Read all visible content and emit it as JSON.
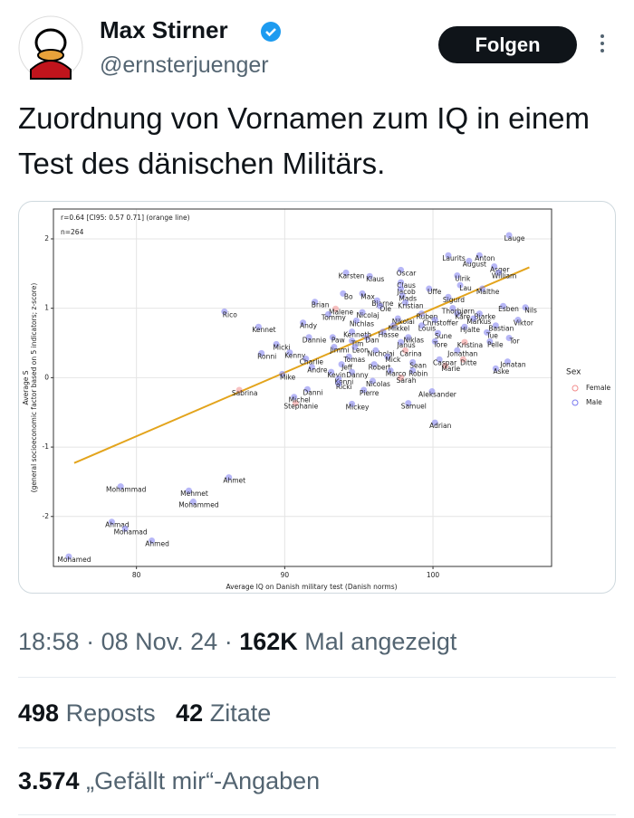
{
  "header": {
    "name": "Max Stirner",
    "handle": "@ernsterjuenger",
    "follow_button": "Folgen"
  },
  "tweet": {
    "text": "Zuordnung von Vornamen zum IQ in einem Test des dänischen Militärs."
  },
  "chart_data": {
    "type": "scatter",
    "annotations": [
      "r=0.64 [CI95: 0.57 0.71] (orange line)",
      "n=264"
    ],
    "x_label": "Average IQ on Danish military test (Danish norms)",
    "y_label": [
      "Average S",
      "(general socioeconomic factor based on 5 indicators; z-score)"
    ],
    "legend_title": "Sex",
    "grid": true,
    "xlim": [
      74.4,
      108.0
    ],
    "ylim": [
      -2.72,
      2.43
    ],
    "xticks": [
      80,
      90,
      100
    ],
    "yticks": [
      -2,
      -1,
      0,
      1,
      2
    ],
    "trend_line": {
      "color": "#e3a41c",
      "x": [
        75.8,
        106.5
      ],
      "values": [
        -1.23,
        1.59
      ]
    },
    "series": [
      {
        "name": "Female",
        "color": "#f28e8e",
        "labels": [
          "Malene",
          "Kristina",
          "Carina",
          "Ditte",
          "Marie",
          "Sarah",
          "Sabrina",
          "Stephanie"
        ],
        "x": [
          93.8,
          102.5,
          98.5,
          102.4,
          101.2,
          98.2,
          87.3,
          91.1
        ],
        "values": [
          0.94,
          0.46,
          0.34,
          0.21,
          0.12,
          -0.05,
          -0.23,
          -0.42
        ]
      },
      {
        "name": "Male",
        "color": "#7b7bf0",
        "labels": [
          "Lauge",
          "Laurits",
          "Anton",
          "August",
          "Asger",
          "William",
          "Ulrik",
          "Lau",
          "Malthe",
          "Esben",
          "Nils",
          "Viktor",
          "Bjarke",
          "Markus",
          "Bastian",
          "Tor",
          "Pelle",
          "Tore",
          "Sune",
          "Tue",
          "Hjalte",
          "Kåre",
          "Thorbjørn",
          "Sigurd",
          "Karsten",
          "Oscar",
          "Klaus",
          "Claus",
          "Jacob",
          "Uffe",
          "Bo",
          "Max",
          "Mads",
          "Brian",
          "Bjarne",
          "Ole",
          "Kristian",
          "Nicolaj",
          "Tommy",
          "Ruben",
          "Rico",
          "Andy",
          "Nichlas",
          "Nikolai",
          "Christoffer",
          "Kennet",
          "Mikkel",
          "Louis",
          "Kenneth",
          "Hasse",
          "Dannie",
          "Paw",
          "Dan",
          "Niklas",
          "Tim",
          "Micki",
          "Ronni",
          "Kenny",
          "Jimmi",
          "Leon",
          "Nicholai",
          "Janus",
          "Jonathan",
          "Charlie",
          "Tomas",
          "Mick",
          "Jeff",
          "Robert",
          "Sean",
          "Caspar",
          "Jonatan",
          "Aske",
          "Andre",
          "Mike",
          "Kevin",
          "Danny",
          "Marco",
          "Robin",
          "Kenni",
          "Ricki",
          "Nicolas",
          "Danni",
          "Pierre",
          "Aleksander",
          "Michel",
          "Mickey",
          "Samuel",
          "Adrian",
          "Ahmet",
          "Mohammad",
          "Mehmet",
          "Mohammed",
          "Ahmad",
          "Mohamad",
          "Ahmed",
          "Mohamed"
        ],
        "x": [
          105.5,
          101.4,
          103.5,
          102.8,
          104.5,
          104.8,
          102.0,
          102.2,
          103.7,
          105.1,
          106.6,
          106.1,
          103.5,
          103.1,
          104.6,
          105.5,
          104.2,
          100.5,
          100.7,
          104.0,
          102.5,
          102.0,
          101.7,
          101.4,
          94.5,
          98.2,
          96.1,
          98.2,
          98.2,
          100.1,
          94.3,
          95.6,
          98.3,
          92.4,
          96.6,
          96.8,
          98.5,
          95.6,
          93.3,
          99.6,
          86.3,
          91.6,
          95.2,
          98.0,
          100.5,
          88.6,
          97.7,
          99.6,
          94.9,
          97.0,
          92.0,
          93.6,
          95.9,
          98.7,
          94.9,
          89.8,
          88.8,
          90.7,
          93.7,
          95.1,
          96.5,
          98.2,
          102.0,
          91.8,
          94.7,
          97.3,
          94.2,
          96.4,
          99.0,
          100.8,
          105.4,
          104.6,
          92.2,
          90.2,
          93.5,
          94.9,
          97.5,
          99.0,
          94.0,
          94.0,
          96.3,
          91.9,
          95.7,
          100.3,
          91.0,
          94.9,
          98.7,
          100.5,
          86.6,
          79.3,
          83.9,
          84.2,
          78.7,
          79.6,
          81.4,
          75.8
        ],
        "values": [
          2.0,
          1.71,
          1.71,
          1.63,
          1.55,
          1.46,
          1.42,
          1.28,
          1.23,
          0.98,
          0.96,
          0.78,
          0.87,
          0.8,
          0.7,
          0.52,
          0.47,
          0.47,
          0.59,
          0.6,
          0.68,
          0.87,
          0.95,
          1.11,
          1.46,
          1.5,
          1.41,
          1.32,
          1.23,
          1.23,
          1.16,
          1.16,
          1.13,
          1.04,
          1.06,
          0.98,
          1.03,
          0.89,
          0.86,
          0.87,
          0.9,
          0.74,
          0.77,
          0.8,
          0.78,
          0.68,
          0.7,
          0.7,
          0.61,
          0.61,
          0.53,
          0.53,
          0.53,
          0.53,
          0.48,
          0.43,
          0.3,
          0.31,
          0.39,
          0.39,
          0.34,
          0.46,
          0.34,
          0.22,
          0.25,
          0.25,
          0.14,
          0.14,
          0.17,
          0.21,
          0.18,
          0.08,
          0.1,
          0.0,
          0.03,
          0.03,
          0.05,
          0.05,
          -0.07,
          -0.14,
          -0.1,
          -0.22,
          -0.23,
          -0.25,
          -0.33,
          -0.43,
          -0.42,
          -0.7,
          -1.49,
          -1.62,
          -1.68,
          -1.84,
          -2.13,
          -2.23,
          -2.4,
          -2.63
        ]
      }
    ]
  },
  "meta": {
    "time": "18:58",
    "separator": "·",
    "date": "08 Nov. 24",
    "views": "162K",
    "views_label": "Mal angezeigt"
  },
  "stats": {
    "reposts": "498",
    "reposts_label": "Reposts",
    "quotes": "42",
    "quotes_label": "Zitate",
    "likes": "3.574",
    "likes_label": "„Gefällt mir“-Angaben"
  }
}
